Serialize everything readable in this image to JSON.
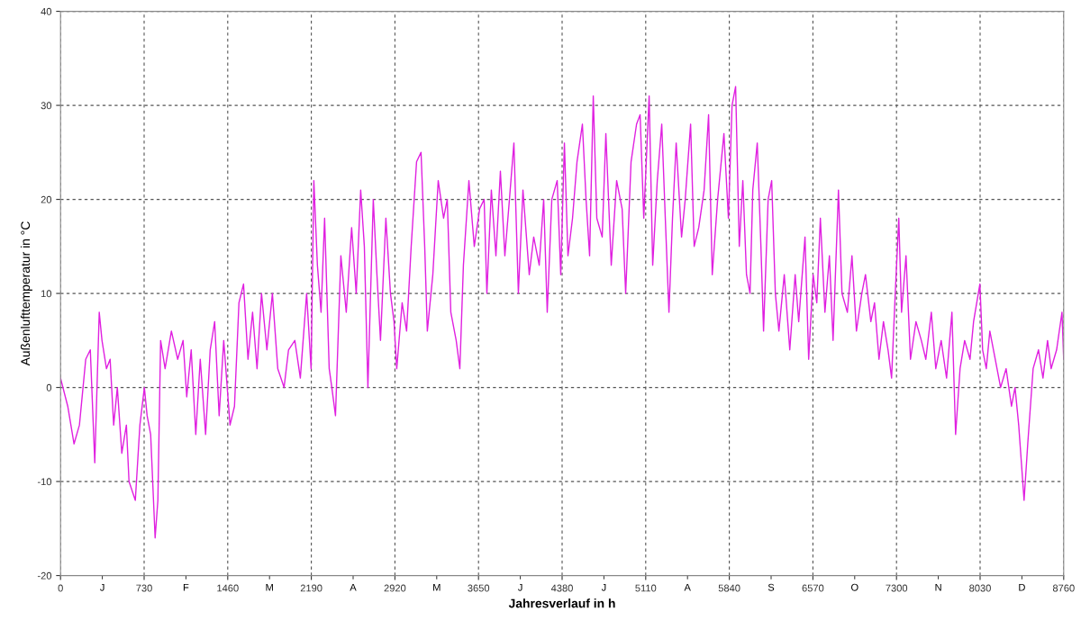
{
  "chart_data": {
    "type": "line",
    "xlabel": "Jahresverlauf in h",
    "ylabel": "Außenlufttemperatur in °C",
    "xlim": [
      0,
      8760
    ],
    "ylim": [
      -20,
      40
    ],
    "xticks": [
      0,
      {
        "value": 365,
        "label": "J"
      },
      730,
      {
        "value": 1095,
        "label": "F"
      },
      1460,
      {
        "value": 1825,
        "label": "M"
      },
      2190,
      {
        "value": 2555,
        "label": "A"
      },
      2920,
      {
        "value": 3285,
        "label": "M"
      },
      3650,
      {
        "value": 4015,
        "label": "J"
      },
      4380,
      {
        "value": 4745,
        "label": "J"
      },
      5110,
      {
        "value": 5475,
        "label": "A"
      },
      5840,
      {
        "value": 6205,
        "label": "S"
      },
      6570,
      {
        "value": 6935,
        "label": "O"
      },
      7300,
      {
        "value": 7665,
        "label": "N"
      },
      8030,
      {
        "value": 8395,
        "label": "D"
      },
      8760
    ],
    "yticks": [
      -20,
      -10,
      0,
      10,
      20,
      30,
      40
    ],
    "grid": true,
    "line_style": "solid",
    "marker": "none",
    "series": [
      {
        "color": "#e020e0",
        "x": [
          0,
          63,
          118,
          165,
          220,
          260,
          299,
          338,
          362,
          401,
          433,
          464,
          496,
          535,
          575,
          598,
          653,
          693,
          732,
          756,
          787,
          826,
          850,
          874,
          913,
          968,
          1023,
          1070,
          1102,
          1141,
          1181,
          1220,
          1267,
          1307,
          1346,
          1385,
          1425,
          1480,
          1519,
          1558,
          1598,
          1637,
          1677,
          1716,
          1755,
          1802,
          1850,
          1897,
          1952,
          1991,
          2046,
          2094,
          2149,
          2188,
          2212,
          2243,
          2275,
          2306,
          2346,
          2369,
          2401,
          2448,
          2495,
          2542,
          2582,
          2621,
          2653,
          2684,
          2731,
          2763,
          2794,
          2841,
          2881,
          2912,
          2936,
          2983,
          3022,
          3062,
          3109,
          3148,
          3180,
          3203,
          3251,
          3298,
          3345,
          3377,
          3408,
          3455,
          3487,
          3518,
          3566,
          3613,
          3660,
          3699,
          3723,
          3762,
          3802,
          3841,
          3880,
          3920,
          3959,
          3998,
          4038,
          4093,
          4132,
          4180,
          4219,
          4250,
          4290,
          4337,
          4368,
          4400,
          4431,
          4471,
          4510,
          4557,
          4589,
          4620,
          4652,
          4683,
          4730,
          4762,
          4809,
          4856,
          4904,
          4935,
          4982,
          5030,
          5061,
          5093,
          5140,
          5171,
          5211,
          5250,
          5281,
          5313,
          5344,
          5376,
          5423,
          5455,
          5502,
          5533,
          5573,
          5620,
          5659,
          5691,
          5738,
          5793,
          5832,
          5864,
          5895,
          5927,
          5958,
          5990,
          6021,
          6045,
          6084,
          6116,
          6139,
          6179,
          6210,
          6242,
          6273,
          6320,
          6368,
          6415,
          6446,
          6501,
          6533,
          6572,
          6604,
          6635,
          6675,
          6714,
          6746,
          6793,
          6824,
          6871,
          6911,
          6950,
          6997,
          7029,
          7076,
          7108,
          7147,
          7186,
          7226,
          7257,
          7289,
          7320,
          7344,
          7383,
          7422,
          7470,
          7517,
          7556,
          7604,
          7643,
          7690,
          7737,
          7784,
          7816,
          7855,
          7895,
          7942,
          7973,
          8028,
          8052,
          8084,
          8115,
          8162,
          8209,
          8257,
          8304,
          8335,
          8367,
          8414,
          8446,
          8493,
          8540,
          8579,
          8619,
          8650,
          8698,
          8745,
          8760
        ],
        "values": [
          1,
          -2,
          -6,
          -4,
          3,
          4,
          -8,
          8,
          5,
          2,
          3,
          -4,
          0,
          -7,
          -4,
          -10,
          -12,
          -4,
          0,
          -3,
          -5,
          -16,
          -12,
          5,
          2,
          6,
          3,
          5,
          -1,
          4,
          -5,
          3,
          -5,
          4,
          7,
          -3,
          5,
          -4,
          -2,
          9,
          11,
          3,
          8,
          2,
          10,
          4,
          10,
          2,
          0,
          4,
          5,
          1,
          10,
          2,
          22,
          13,
          8,
          18,
          2,
          0,
          -3,
          14,
          8,
          17,
          10,
          21,
          15,
          0,
          20,
          12,
          5,
          18,
          10,
          7,
          2,
          9,
          6,
          15,
          24,
          25,
          15,
          6,
          12,
          22,
          18,
          20,
          8,
          5,
          2,
          13,
          22,
          15,
          19,
          20,
          10,
          21,
          14,
          23,
          14,
          20,
          26,
          10,
          21,
          12,
          16,
          13,
          20,
          8,
          20,
          22,
          12,
          26,
          14,
          18,
          24,
          28,
          20,
          14,
          31,
          18,
          16,
          27,
          13,
          22,
          19,
          10,
          24,
          28,
          29,
          18,
          31,
          13,
          22,
          28,
          18,
          8,
          18,
          26,
          16,
          20,
          28,
          15,
          17,
          21,
          29,
          12,
          20,
          27,
          18,
          30,
          32,
          15,
          22,
          12,
          10,
          21,
          26,
          15,
          6,
          20,
          22,
          10,
          6,
          12,
          4,
          12,
          7,
          16,
          3,
          12,
          9,
          18,
          8,
          14,
          5,
          21,
          10,
          8,
          14,
          6,
          10,
          12,
          7,
          9,
          3,
          7,
          4,
          1,
          10,
          18,
          8,
          14,
          3,
          7,
          5,
          3,
          8,
          2,
          5,
          1,
          8,
          -5,
          2,
          5,
          3,
          7,
          11,
          4,
          2,
          6,
          3,
          0,
          2,
          -2,
          0,
          -4,
          -12,
          -6,
          2,
          4,
          1,
          5,
          2,
          4,
          8,
          3
        ]
      }
    ]
  }
}
